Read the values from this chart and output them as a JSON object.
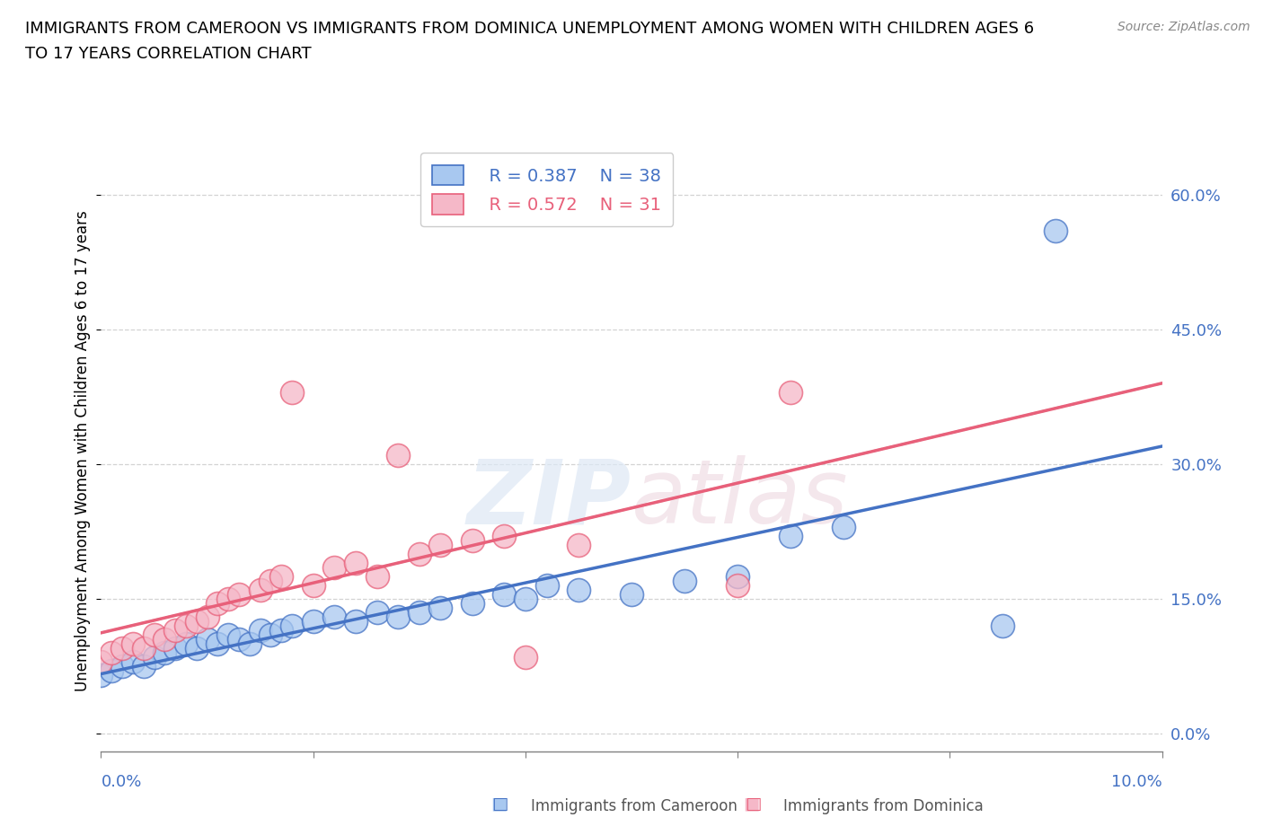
{
  "title_line1": "IMMIGRANTS FROM CAMEROON VS IMMIGRANTS FROM DOMINICA UNEMPLOYMENT AMONG WOMEN WITH CHILDREN AGES 6",
  "title_line2": "TO 17 YEARS CORRELATION CHART",
  "source": "Source: ZipAtlas.com",
  "ylabel": "Unemployment Among Women with Children Ages 6 to 17 years",
  "ytick_labels": [
    "0.0%",
    "15.0%",
    "30.0%",
    "45.0%",
    "60.0%"
  ],
  "ytick_values": [
    0.0,
    0.15,
    0.3,
    0.45,
    0.6
  ],
  "xlim": [
    0.0,
    0.1
  ],
  "ylim": [
    -0.02,
    0.65
  ],
  "watermark": "ZIPatlas",
  "legend_R_cameroon": "R = 0.387",
  "legend_N_cameroon": "N = 38",
  "legend_R_dominica": "R = 0.572",
  "legend_N_dominica": "N = 31",
  "color_cameroon": "#a8c8f0",
  "color_dominica": "#f5b8c8",
  "line_color_cameroon": "#4472c4",
  "line_color_dominica": "#e8607a",
  "dashed_color": "#c0c0c0",
  "background_color": "#ffffff",
  "cameroon_x": [
    0.0,
    0.001,
    0.002,
    0.003,
    0.004,
    0.005,
    0.006,
    0.007,
    0.008,
    0.009,
    0.01,
    0.011,
    0.012,
    0.013,
    0.014,
    0.015,
    0.016,
    0.017,
    0.018,
    0.02,
    0.022,
    0.024,
    0.026,
    0.028,
    0.03,
    0.032,
    0.035,
    0.038,
    0.04,
    0.042,
    0.045,
    0.05,
    0.055,
    0.06,
    0.065,
    0.07,
    0.085,
    0.09
  ],
  "cameroon_y": [
    0.065,
    0.07,
    0.075,
    0.08,
    0.075,
    0.085,
    0.09,
    0.095,
    0.1,
    0.095,
    0.105,
    0.1,
    0.11,
    0.105,
    0.1,
    0.115,
    0.11,
    0.115,
    0.12,
    0.125,
    0.13,
    0.125,
    0.135,
    0.13,
    0.135,
    0.14,
    0.145,
    0.155,
    0.15,
    0.165,
    0.16,
    0.155,
    0.17,
    0.175,
    0.22,
    0.23,
    0.12,
    0.56
  ],
  "dominica_x": [
    0.0,
    0.001,
    0.002,
    0.003,
    0.004,
    0.005,
    0.006,
    0.007,
    0.008,
    0.009,
    0.01,
    0.011,
    0.012,
    0.013,
    0.015,
    0.016,
    0.017,
    0.018,
    0.02,
    0.022,
    0.024,
    0.026,
    0.028,
    0.03,
    0.032,
    0.035,
    0.038,
    0.04,
    0.045,
    0.06,
    0.065
  ],
  "dominica_y": [
    0.08,
    0.09,
    0.095,
    0.1,
    0.095,
    0.11,
    0.105,
    0.115,
    0.12,
    0.125,
    0.13,
    0.145,
    0.15,
    0.155,
    0.16,
    0.17,
    0.175,
    0.38,
    0.165,
    0.185,
    0.19,
    0.175,
    0.31,
    0.2,
    0.21,
    0.215,
    0.22,
    0.085,
    0.21,
    0.165,
    0.38
  ],
  "xlabel_ticks": [
    0.0,
    0.02,
    0.04,
    0.06,
    0.08,
    0.1
  ]
}
